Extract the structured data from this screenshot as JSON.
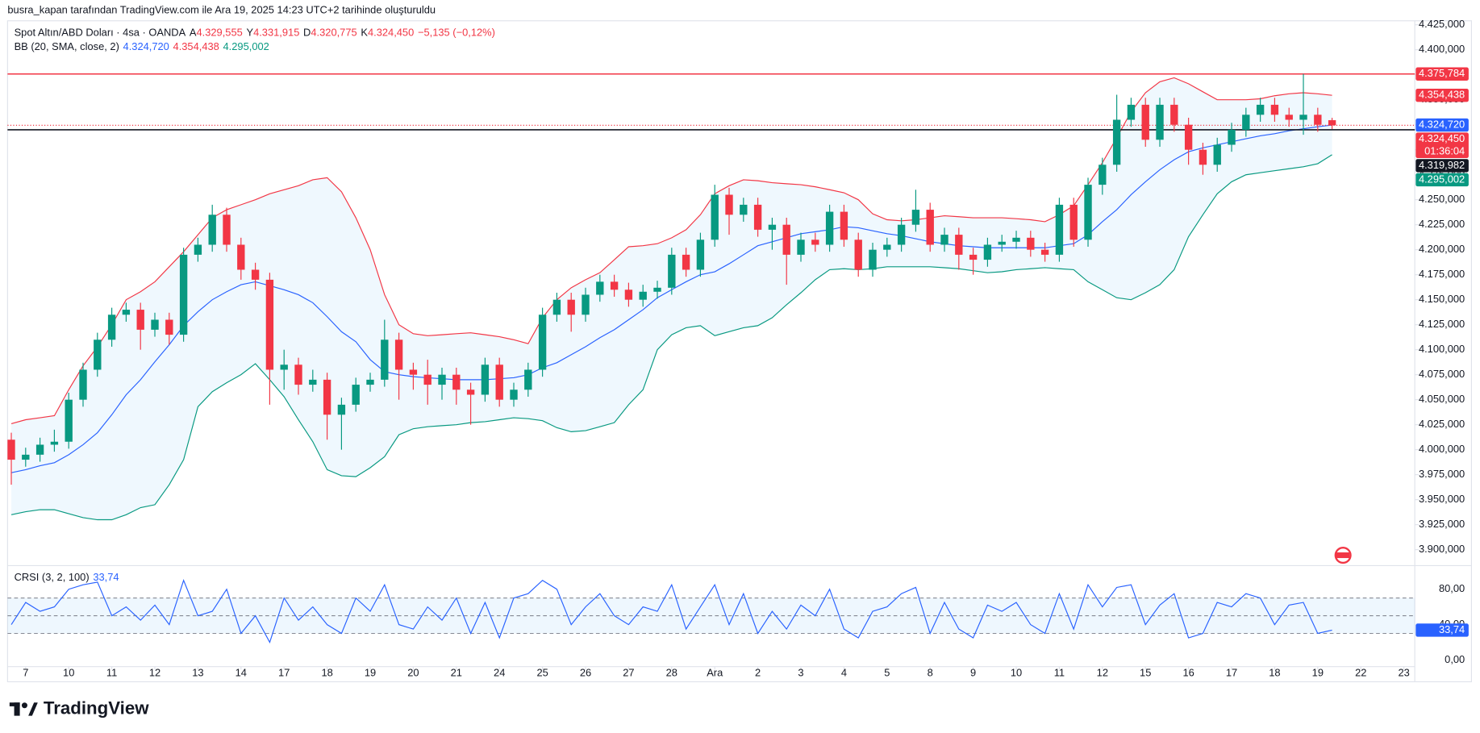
{
  "header": {
    "attribution": "busra_kapan tarafından TradingView.com ile Ara 19, 2025 14:23 UTC+2 tarihinde oluşturuldu",
    "symbol": "Spot Altın/ABD Doları · 4sa · OANDA",
    "ohlc": [
      {
        "prefix": "A",
        "value": "4.329,555"
      },
      {
        "prefix": "Y",
        "value": "4.331,915"
      },
      {
        "prefix": "D",
        "value": "4.320,775"
      },
      {
        "prefix": "K",
        "value": "4.324,450"
      }
    ],
    "change": "−5,135 (−0,12%)",
    "bb_name": "BB (20, SMA, close, 2)",
    "bb_values": [
      "4.324,720",
      "4.354,438",
      "4.295,002"
    ],
    "brand": "TradingView"
  },
  "chart_data": [
    {
      "type": "candlestick",
      "up_color": "#089981",
      "down_color": "#f23645",
      "open": [
        4010,
        3990,
        3995,
        4005,
        4008,
        4050,
        4080,
        4110,
        4135,
        4140,
        4120,
        4130,
        4115,
        4195,
        4205,
        4235,
        4205,
        4180,
        4170,
        4080,
        4085,
        4065,
        4070,
        4035,
        4045,
        4065,
        4070,
        4110,
        4080,
        4075,
        4065,
        4075,
        4060,
        4055,
        4085,
        4050,
        4060,
        4080,
        4135,
        4150,
        4135,
        4155,
        4168,
        4160,
        4150,
        4158,
        4162,
        4195,
        4180,
        4210,
        4255,
        4235,
        4245,
        4220,
        4225,
        4195,
        4210,
        4205,
        4238,
        4210,
        4180,
        4200,
        4205,
        4225,
        4240,
        4205,
        4215,
        4195,
        4190,
        4205,
        4208,
        4212,
        4200,
        4195,
        4245,
        4210,
        4265,
        4285,
        4330,
        4345,
        4310,
        4345,
        4325,
        4300,
        4285,
        4305,
        4320,
        4335,
        4345,
        4335,
        4330,
        4335,
        4329.555
      ],
      "high": [
        4017,
        4002,
        4012,
        4020,
        4057,
        4087,
        4117,
        4142,
        4147,
        4147,
        4137,
        4137,
        4202,
        4212,
        4245,
        4242,
        4212,
        4187,
        4177,
        4100,
        4092,
        4080,
        4077,
        4052,
        4072,
        4077,
        4130,
        4117,
        4087,
        4090,
        4082,
        4082,
        4067,
        4092,
        4092,
        4067,
        4087,
        4142,
        4157,
        4157,
        4162,
        4175,
        4175,
        4167,
        4165,
        4169,
        4202,
        4202,
        4217,
        4265,
        4262,
        4252,
        4252,
        4232,
        4232,
        4217,
        4217,
        4245,
        4245,
        4217,
        4207,
        4212,
        4232,
        4260,
        4247,
        4222,
        4222,
        4202,
        4212,
        4215,
        4219,
        4219,
        4207,
        4252,
        4252,
        4272,
        4292,
        4355,
        4352,
        4352,
        4352,
        4352,
        4332,
        4307,
        4312,
        4327,
        4342,
        4352,
        4352,
        4342,
        4375.784,
        4342,
        4331.915
      ],
      "low": [
        3965,
        3983,
        3988,
        3998,
        4001,
        4043,
        4073,
        4103,
        4128,
        4100,
        4113,
        4105,
        4108,
        4188,
        4198,
        4198,
        4170,
        4160,
        4045,
        4060,
        4055,
        4058,
        4010,
        4000,
        4038,
        4058,
        4063,
        4050,
        4060,
        4045,
        4050,
        4045,
        4025,
        4048,
        4043,
        4043,
        4053,
        4073,
        4128,
        4118,
        4128,
        4148,
        4153,
        4143,
        4143,
        4151,
        4155,
        4173,
        4173,
        4203,
        4215,
        4228,
        4213,
        4200,
        4165,
        4188,
        4198,
        4198,
        4203,
        4173,
        4173,
        4193,
        4198,
        4218,
        4198,
        4198,
        4180,
        4175,
        4183,
        4198,
        4201,
        4193,
        4188,
        4188,
        4203,
        4203,
        4255,
        4278,
        4323,
        4303,
        4303,
        4318,
        4285,
        4275,
        4278,
        4298,
        4313,
        4328,
        4328,
        4323,
        4315,
        4318,
        4320.775
      ],
      "close": [
        3990,
        3995,
        4005,
        4008,
        4050,
        4080,
        4110,
        4135,
        4140,
        4120,
        4130,
        4115,
        4195,
        4205,
        4235,
        4205,
        4180,
        4170,
        4080,
        4085,
        4065,
        4070,
        4035,
        4045,
        4065,
        4070,
        4110,
        4080,
        4075,
        4065,
        4075,
        4060,
        4055,
        4085,
        4050,
        4060,
        4080,
        4135,
        4150,
        4135,
        4155,
        4168,
        4160,
        4150,
        4158,
        4162,
        4195,
        4180,
        4210,
        4255,
        4235,
        4245,
        4220,
        4225,
        4195,
        4210,
        4205,
        4238,
        4210,
        4180,
        4200,
        4205,
        4225,
        4240,
        4205,
        4215,
        4195,
        4190,
        4205,
        4208,
        4212,
        4200,
        4195,
        4245,
        4210,
        4265,
        4285,
        4330,
        4345,
        4310,
        4345,
        4325,
        4300,
        4285,
        4305,
        4320,
        4335,
        4345,
        4335,
        4330,
        4335,
        4325,
        4324.45
      ],
      "bands": {
        "fill": "#2196f3",
        "upper_color": "#f23645",
        "basis_color": "#2962ff",
        "lower_color": "#089981",
        "upper": [
          4026,
          4030,
          4032,
          4034,
          4060,
          4084,
          4103,
          4125,
          4150,
          4158,
          4168,
          4183,
          4198,
          4215,
          4232,
          4240,
          4245,
          4250,
          4256,
          4260,
          4264,
          4270,
          4272,
          4258,
          4232,
          4200,
          4155,
          4125,
          4116,
          4114,
          4115,
          4116,
          4117,
          4115,
          4113,
          4110,
          4106,
          4132,
          4150,
          4162,
          4170,
          4177,
          4190,
          4203,
          4204,
          4206,
          4212,
          4220,
          4235,
          4256,
          4264,
          4270,
          4269,
          4267,
          4266,
          4265,
          4263,
          4260,
          4257,
          4250,
          4236,
          4230,
          4229,
          4230,
          4232,
          4234,
          4233,
          4232,
          4232,
          4232,
          4231,
          4230,
          4228,
          4235,
          4244,
          4265,
          4287,
          4312,
          4338,
          4357,
          4368,
          4372,
          4366,
          4358,
          4350,
          4350,
          4350,
          4351,
          4354,
          4356,
          4357,
          4356,
          4354.438
        ],
        "basis": [
          3977,
          3980,
          3984,
          3987,
          3995,
          4005,
          4017,
          4035,
          4055,
          4070,
          4088,
          4105,
          4124,
          4138,
          4150,
          4158,
          4165,
          4168,
          4164,
          4160,
          4155,
          4147,
          4133,
          4118,
          4108,
          4090,
          4078,
          4075,
          4073,
          4072,
          4071,
          4070,
          4070,
          4070,
          4071,
          4072,
          4075,
          4082,
          4087,
          4095,
          4103,
          4112,
          4120,
          4130,
          4140,
          4152,
          4160,
          4168,
          4175,
          4178,
          4186,
          4195,
          4204,
          4208,
          4212,
          4216,
          4218,
          4220,
          4223,
          4222,
          4219,
          4216,
          4214,
          4211,
          4208,
          4206,
          4204,
          4203,
          4202,
          4202,
          4202,
          4202,
          4202,
          4204,
          4206,
          4215,
          4228,
          4240,
          4255,
          4268,
          4280,
          4290,
          4298,
          4302,
          4305,
          4308,
          4311,
          4314,
          4316,
          4319,
          4321,
          4323,
          4324.72
        ],
        "lower": [
          3935,
          3938,
          3940,
          3940,
          3936,
          3932,
          3930,
          3930,
          3935,
          3942,
          3945,
          3965,
          3990,
          4043,
          4058,
          4067,
          4075,
          4086,
          4070,
          4053,
          4030,
          4008,
          3980,
          3974,
          3973,
          3982,
          3993,
          4015,
          4021,
          4023,
          4024,
          4025,
          4027,
          4028,
          4030,
          4032,
          4031,
          4029,
          4022,
          4018,
          4019,
          4023,
          4027,
          4045,
          4060,
          4100,
          4115,
          4122,
          4124,
          4114,
          4118,
          4122,
          4124,
          4132,
          4145,
          4157,
          4170,
          4180,
          4181,
          4180,
          4181,
          4183,
          4183,
          4183,
          4183,
          4182,
          4181,
          4179,
          4177,
          4178,
          4180,
          4181,
          4182,
          4181,
          4180,
          4168,
          4160,
          4152,
          4150,
          4157,
          4165,
          4180,
          4213,
          4235,
          4256,
          4268,
          4275,
          4277,
          4279,
          4281,
          4283,
          4286,
          4295.002
        ]
      },
      "hlines": [
        {
          "value": 4375.784,
          "color": "#f23645",
          "style": "solid"
        },
        {
          "value": 4319.982,
          "color": "#131722",
          "style": "solid"
        },
        {
          "value": 4324.45,
          "color": "#f23645",
          "style": "dotted"
        }
      ],
      "price_labels": [
        {
          "value": 4375.784,
          "label": "4.375,784",
          "color": "#f23645"
        },
        {
          "value": 4354.438,
          "label": "4.354,438",
          "color": "#f23645"
        },
        {
          "value": 4324.72,
          "label": "4.324,720",
          "color": "#2962ff"
        },
        {
          "value": 4324.45,
          "label": "4.324,450",
          "color": "#f23645",
          "countdown": "01:36:04"
        },
        {
          "value": 4319.982,
          "label": "4.319,982",
          "color": "#131722"
        },
        {
          "value": 4295.002,
          "label": "4.295,002",
          "color": "#089981"
        }
      ],
      "xlim": [
        -0.26,
        97.76
      ],
      "xticks": [
        {
          "value": 1,
          "label": "7"
        },
        {
          "value": 4,
          "label": "10"
        },
        {
          "value": 7,
          "label": "11"
        },
        {
          "value": 10,
          "label": "12"
        },
        {
          "value": 13,
          "label": "13"
        },
        {
          "value": 16,
          "label": "14"
        },
        {
          "value": 19,
          "label": "17"
        },
        {
          "value": 22,
          "label": "18"
        },
        {
          "value": 25,
          "label": "19"
        },
        {
          "value": 28,
          "label": "20"
        },
        {
          "value": 31,
          "label": "21"
        },
        {
          "value": 34,
          "label": "24"
        },
        {
          "value": 37,
          "label": "25"
        },
        {
          "value": 40,
          "label": "26"
        },
        {
          "value": 43,
          "label": "27"
        },
        {
          "value": 46,
          "label": "28"
        },
        {
          "value": 49,
          "label": "Ara"
        },
        {
          "value": 52,
          "label": "2"
        },
        {
          "value": 55,
          "label": "3"
        },
        {
          "value": 58,
          "label": "4"
        },
        {
          "value": 61,
          "label": "5"
        },
        {
          "value": 64,
          "label": "8"
        },
        {
          "value": 67,
          "label": "9"
        },
        {
          "value": 70,
          "label": "10"
        },
        {
          "value": 73,
          "label": "11"
        },
        {
          "value": 76,
          "label": "12"
        },
        {
          "value": 79,
          "label": "15"
        },
        {
          "value": 82,
          "label": "16"
        },
        {
          "value": 85,
          "label": "17"
        },
        {
          "value": 88,
          "label": "18"
        },
        {
          "value": 91,
          "label": "19"
        },
        {
          "value": 94,
          "label": "22"
        },
        {
          "value": 97,
          "label": "23"
        }
      ],
      "ylim": [
        3885,
        4429
      ],
      "yticks": [
        {
          "value": 3900,
          "label": "3.900,000"
        },
        {
          "value": 3925,
          "label": "3.925,000"
        },
        {
          "value": 3950,
          "label": "3.950,000"
        },
        {
          "value": 3975,
          "label": "3.975,000"
        },
        {
          "value": 4000,
          "label": "4.000,000"
        },
        {
          "value": 4025,
          "label": "4.025,000"
        },
        {
          "value": 4050,
          "label": "4.050,000"
        },
        {
          "value": 4075,
          "label": "4.075,000"
        },
        {
          "value": 4100,
          "label": "4.100,000"
        },
        {
          "value": 4125,
          "label": "4.125,000"
        },
        {
          "value": 4150,
          "label": "4.150,000"
        },
        {
          "value": 4175,
          "label": "4.175,000"
        },
        {
          "value": 4200,
          "label": "4.200,000"
        },
        {
          "value": 4225,
          "label": "4.225,000"
        },
        {
          "value": 4250,
          "label": "4.250,000"
        },
        {
          "value": 4275,
          "label": "4.275,000"
        },
        {
          "value": 4300,
          "label": "4.300,000"
        },
        {
          "value": 4325,
          "label": "4.325,000"
        },
        {
          "value": 4350,
          "label": "4.350,000"
        },
        {
          "value": 4375,
          "label": "4.375,000"
        },
        {
          "value": 4400,
          "label": "4.400,000"
        },
        {
          "value": 4425,
          "label": "4.425,000"
        }
      ]
    },
    {
      "type": "line",
      "title": "CRSI (3, 2, 100)",
      "color": "#2962ff",
      "band_fill": "#2196f3",
      "values": [
        40,
        65,
        55,
        60,
        80,
        85,
        88,
        50,
        60,
        45,
        62,
        40,
        90,
        50,
        55,
        80,
        30,
        50,
        20,
        70,
        45,
        60,
        40,
        30,
        70,
        55,
        85,
        40,
        35,
        60,
        45,
        70,
        30,
        65,
        25,
        70,
        75,
        90,
        80,
        40,
        60,
        75,
        50,
        40,
        60,
        55,
        85,
        35,
        60,
        85,
        40,
        75,
        30,
        55,
        35,
        62,
        50,
        80,
        35,
        25,
        55,
        60,
        75,
        82,
        30,
        65,
        35,
        25,
        62,
        55,
        65,
        40,
        30,
        75,
        35,
        85,
        60,
        82,
        85,
        40,
        62,
        75,
        25,
        30,
        65,
        60,
        75,
        70,
        40,
        62,
        65,
        30,
        33.74
      ],
      "last_value_label": "33,74",
      "levels": [
        70,
        50,
        30
      ],
      "ylim": [
        -7.5,
        104.5
      ],
      "yticks": [
        {
          "value": 0,
          "label": "0,00"
        },
        {
          "value": 40,
          "label": "40,00"
        },
        {
          "value": 80,
          "label": "80,00"
        }
      ]
    }
  ]
}
